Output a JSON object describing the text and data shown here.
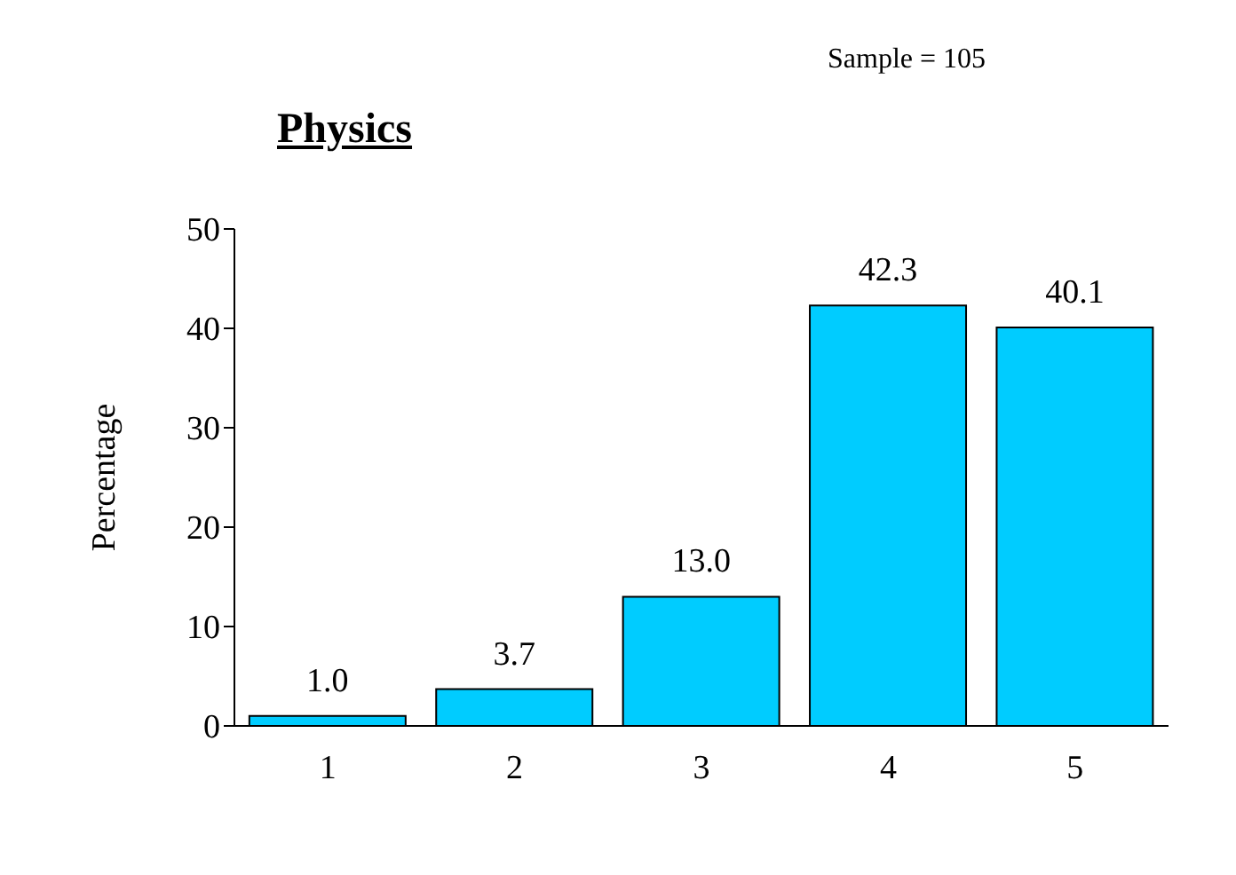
{
  "chart_data": {
    "type": "bar",
    "title": "Physics",
    "ylabel": "Percentage",
    "annotations": [
      "Sample = 105"
    ],
    "categories": [
      "1",
      "2",
      "3",
      "4",
      "5"
    ],
    "values": [
      1.0,
      3.7,
      13.0,
      42.3,
      40.1
    ],
    "value_labels": [
      "1.0",
      "3.7",
      "13.0",
      "42.3",
      "40.1"
    ],
    "color": "#00ccff",
    "ylim": [
      0,
      50
    ],
    "yticks": [
      0,
      10,
      20,
      30,
      40,
      50
    ],
    "grid": false,
    "legend": false
  }
}
